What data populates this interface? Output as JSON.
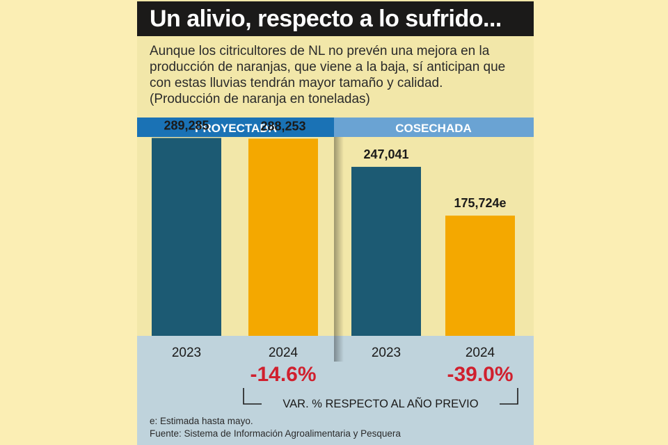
{
  "header": {
    "title": "Un alivio, respecto a lo sufrido...",
    "subtitle_lines": [
      "Aunque los citricultores de NL no prevén una mejora en la",
      "producción de naranjas, que viene a la baja, sí anticipan que",
      "con estas lluvias tendrán mayor tamaño y calidad.",
      "(Producción de naranja en toneladas)"
    ]
  },
  "chart_data": {
    "type": "bar",
    "unit": "toneladas",
    "groups": [
      {
        "label": "PROYECTADA",
        "categories": [
          "2023",
          "2024"
        ],
        "values": [
          289285,
          288253
        ],
        "value_labels": [
          "289,285",
          "288,253"
        ],
        "change_label": "-14.6%"
      },
      {
        "label": "COSECHADA",
        "categories": [
          "2023",
          "2024"
        ],
        "values": [
          247041,
          175724
        ],
        "value_labels": [
          "247,041",
          "175,724e"
        ],
        "change_label": "-39.0%"
      }
    ],
    "bar_colors": [
      "#1c5a73",
      "#f4a800"
    ],
    "group_header_colors": [
      "#1a72b5",
      "#6aa3d3"
    ],
    "change_color": "#d0202e",
    "change_caption": "VAR. % RESPECTO AL AÑO PREVIO",
    "ylim": [
      0,
      500000
    ],
    "grid": false
  },
  "footer": {
    "note": "e: Estimada hasta mayo.",
    "source": "Fuente: Sistema de Información Agroalimentaria y Pesquera"
  },
  "colors": {
    "background": "#fbeeb4",
    "panel": "#f2e7a9",
    "bottom_band": "#bfd3dc",
    "title_bar": "#1b1a19"
  }
}
